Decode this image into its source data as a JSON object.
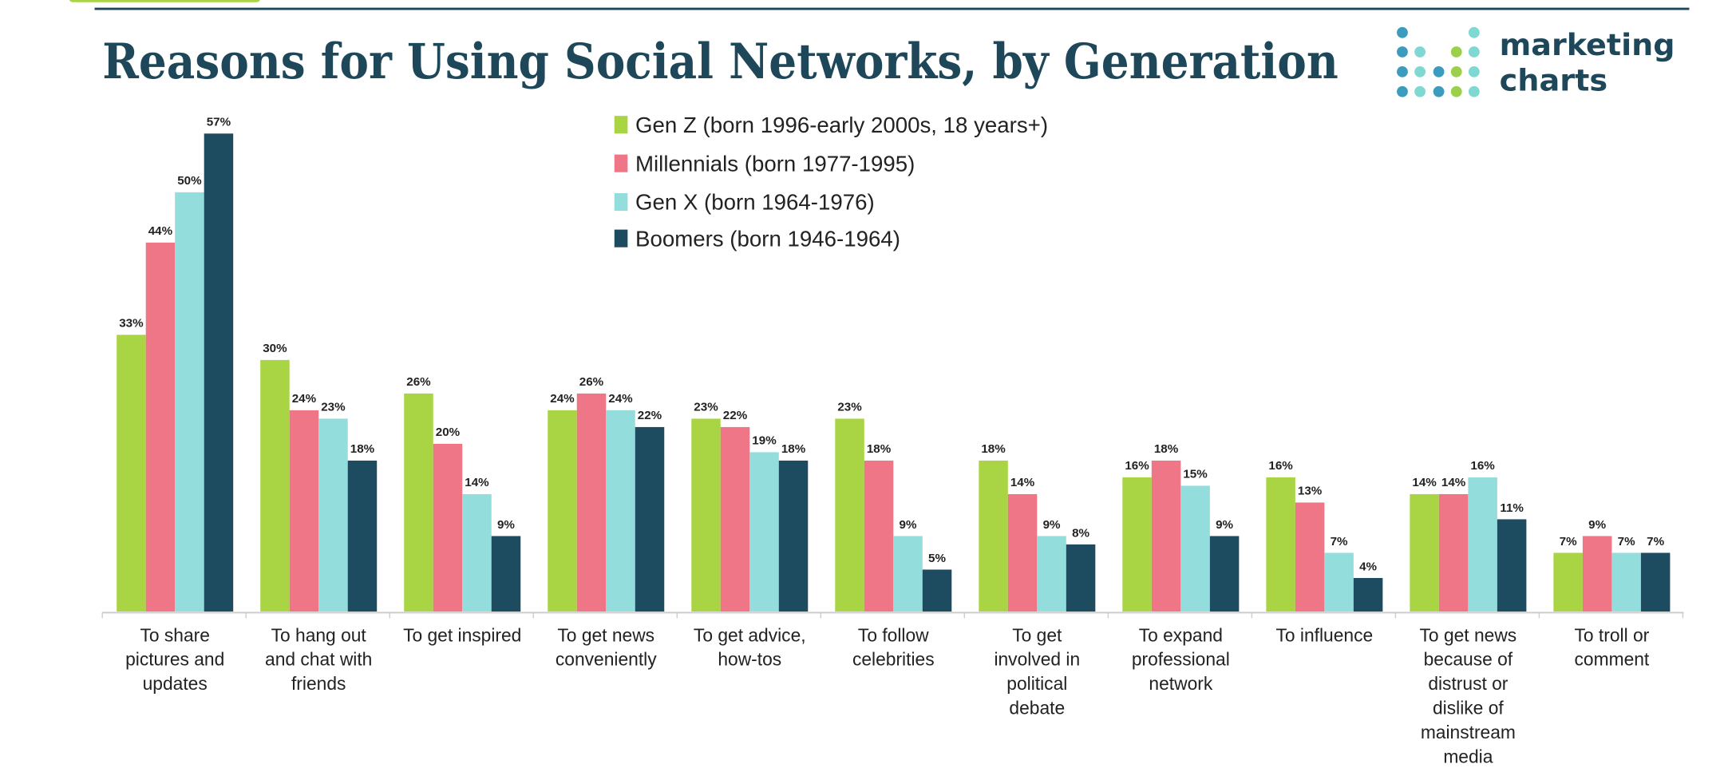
{
  "chart_data": {
    "type": "bar",
    "title": "Reasons for Using Social Networks, by Generation",
    "xlabel": "",
    "ylabel": "",
    "ylim": [
      0,
      60
    ],
    "grid": false,
    "legend_position": "top-center",
    "categories": [
      [
        "To share",
        "pictures and",
        "updates"
      ],
      [
        "To hang out",
        "and chat with",
        "friends"
      ],
      [
        "To get inspired"
      ],
      [
        "To get news",
        "conveniently"
      ],
      [
        "To get advice,",
        "how-tos"
      ],
      [
        "To follow",
        "celebrities"
      ],
      [
        "To get",
        "involved in",
        "political",
        "debate"
      ],
      [
        "To expand",
        "professional",
        "network"
      ],
      [
        "To influence"
      ],
      [
        "To get news",
        "because of",
        "distrust or",
        "dislike of",
        "mainstream",
        "media"
      ],
      [
        "To troll or",
        "comment"
      ]
    ],
    "series": [
      {
        "name": "Gen Z (born 1996-early 2000s, 18 years+)",
        "color": "#a9d545",
        "values": [
          33,
          30,
          26,
          24,
          23,
          23,
          18,
          16,
          16,
          14,
          7
        ]
      },
      {
        "name": "Millennials (born 1977-1995)",
        "color": "#ef7687",
        "values": [
          44,
          24,
          20,
          26,
          22,
          18,
          14,
          18,
          13,
          14,
          9
        ]
      },
      {
        "name": "Gen X (born 1964-1976)",
        "color": "#93dddc",
        "values": [
          50,
          23,
          14,
          24,
          19,
          9,
          9,
          15,
          7,
          16,
          7
        ]
      },
      {
        "name": "Boomers (born 1946-1964)",
        "color": "#1d4b5f",
        "values": [
          57,
          18,
          9,
          22,
          18,
          5,
          8,
          9,
          4,
          11,
          7
        ]
      }
    ],
    "value_suffix": "%"
  },
  "logo": {
    "line1": "marketing",
    "line2": "charts"
  },
  "colors": {
    "title": "#1e4759",
    "rule": "#1e4759",
    "accent": "#a9d545"
  }
}
